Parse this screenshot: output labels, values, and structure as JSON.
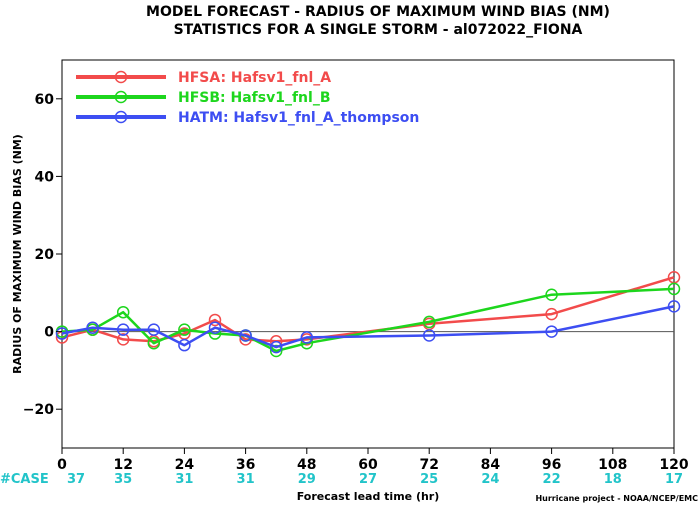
{
  "chart_data": {
    "type": "line",
    "title": "MODEL FORECAST - RADIUS OF MAXIMUM WIND BIAS (NM)",
    "subtitle": "STATISTICS FOR A SINGLE STORM - al072022_FIONA",
    "xlabel": "Forecast lead time (hr)",
    "ylabel": "RADIUS OF MAXIMUM WIND BIAS (NM)",
    "xlim": [
      0,
      120
    ],
    "ylim": [
      -30,
      70
    ],
    "xticks": [
      0,
      12,
      24,
      36,
      48,
      60,
      72,
      84,
      96,
      108,
      120
    ],
    "yticks": [
      -20,
      0,
      20,
      40,
      60
    ],
    "grid": false,
    "legend_position": "top-left",
    "case_label": "#CASE",
    "case_counts": [
      "37",
      "35",
      "31",
      "31",
      "29",
      "27",
      "25",
      "24",
      "22",
      "18",
      "17"
    ],
    "credit": "Hurricane project - NOAA/NCEP/EMC",
    "zero_line": true,
    "series": [
      {
        "name": "HFSA:  Hafsv1_fnl_A",
        "color": "#f24b4b",
        "x": [
          0,
          6,
          12,
          18,
          24,
          30,
          36,
          42,
          48,
          72,
          96,
          120
        ],
        "y": [
          -1.5,
          0.5,
          -2.0,
          -2.5,
          -0.5,
          3.0,
          -2.0,
          -2.5,
          -2.0,
          2.0,
          4.5,
          14.0
        ]
      },
      {
        "name": "HFSB:  Hafsv1_fnl_B",
        "color": "#1dd61d",
        "x": [
          0,
          6,
          12,
          18,
          24,
          30,
          36,
          42,
          48,
          72,
          96,
          120
        ],
        "y": [
          0.0,
          0.5,
          5.0,
          -3.0,
          0.5,
          -0.5,
          -1.0,
          -5.0,
          -3.0,
          2.5,
          9.5,
          11.0
        ]
      },
      {
        "name": "HATM:  Hafsv1_fnl_A_thompson",
        "color": "#3d4ef2",
        "x": [
          0,
          6,
          12,
          18,
          24,
          30,
          36,
          42,
          48,
          72,
          96,
          120
        ],
        "y": [
          -0.5,
          1.0,
          0.5,
          0.5,
          -3.5,
          1.0,
          -1.0,
          -4.0,
          -1.5,
          -1.0,
          0.0,
          6.5
        ]
      }
    ]
  }
}
